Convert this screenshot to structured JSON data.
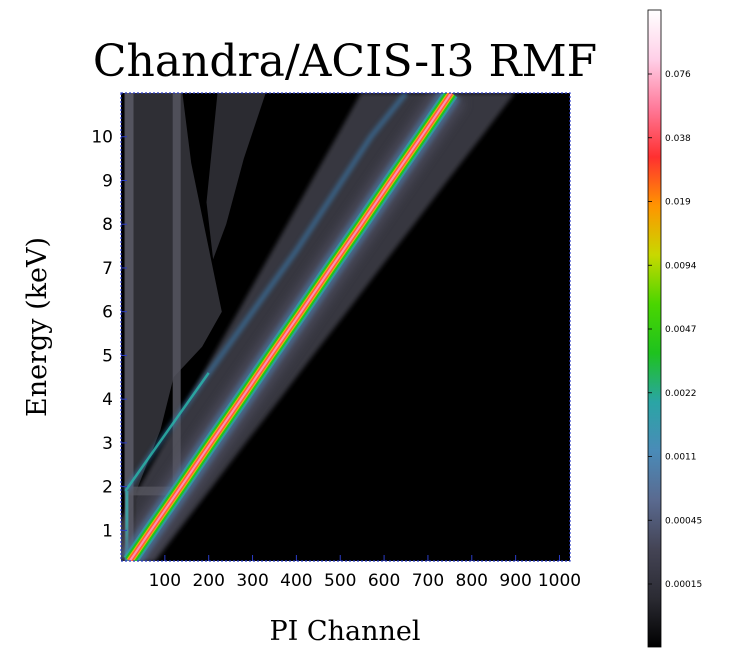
{
  "chart_data": {
    "type": "heatmap",
    "title": "Chandra/ACIS-I3 RMF",
    "xlabel": "PI Channel",
    "ylabel": "Energy (keV)",
    "xlim": [
      0,
      1024
    ],
    "ylim": [
      0.3,
      11
    ],
    "x_ticks": [
      {
        "value": 100,
        "label": "100"
      },
      {
        "value": 200,
        "label": "200"
      },
      {
        "value": 300,
        "label": "300"
      },
      {
        "value": 400,
        "label": "400"
      },
      {
        "value": 500,
        "label": "500"
      },
      {
        "value": 600,
        "label": "600"
      },
      {
        "value": 700,
        "label": "700"
      },
      {
        "value": 800,
        "label": "800"
      },
      {
        "value": 900,
        "label": "900"
      },
      {
        "value": 1000,
        "label": "1000"
      }
    ],
    "y_ticks": [
      {
        "value": 1,
        "label": "1"
      },
      {
        "value": 2,
        "label": "2"
      },
      {
        "value": 3,
        "label": "3"
      },
      {
        "value": 4,
        "label": "4"
      },
      {
        "value": 5,
        "label": "5"
      },
      {
        "value": 6,
        "label": "6"
      },
      {
        "value": 7,
        "label": "7"
      },
      {
        "value": 8,
        "label": "8"
      },
      {
        "value": 9,
        "label": "9"
      },
      {
        "value": 10,
        "label": "10"
      }
    ],
    "ridge": {
      "description_free": true,
      "points": [
        [
          20,
          0.3
        ],
        [
          68,
          1.0
        ],
        [
          137,
          2.0
        ],
        [
          205,
          3.0
        ],
        [
          274,
          4.0
        ],
        [
          342,
          5.0
        ],
        [
          411,
          6.0
        ],
        [
          479,
          7.0
        ],
        [
          548,
          8.0
        ],
        [
          616,
          9.0
        ],
        [
          685,
          10.0
        ],
        [
          753,
          11.0
        ]
      ]
    },
    "escape_line": {
      "points": [
        [
          10,
          1.9
        ],
        [
          80,
          2.9
        ],
        [
          200,
          4.6
        ],
        [
          400,
          7.4
        ],
        [
          570,
          10.0
        ],
        [
          650,
          11.0
        ]
      ]
    },
    "colorbar": {
      "scale": "log",
      "colormap": [
        "#000000",
        "#2b2b33",
        "#444455",
        "#5a6a90",
        "#4a8bb8",
        "#2aa5a5",
        "#1ec21e",
        "#4ad600",
        "#c8d800",
        "#ff9500",
        "#ff3030",
        "#ff7a9a",
        "#ffd0e8",
        "#ffffff"
      ],
      "ticks": [
        "0.00015",
        "0.00045",
        "0.0011",
        "0.0022",
        "0.0047",
        "0.0094",
        "0.019",
        "0.038",
        "0.076"
      ]
    }
  }
}
